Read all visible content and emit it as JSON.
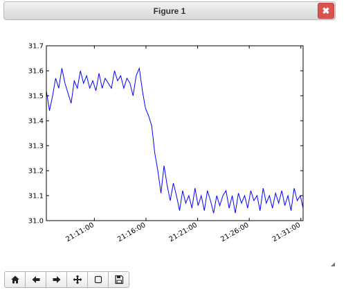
{
  "window": {
    "title": "Figure 1",
    "close_icon": "close-icon"
  },
  "toolbar": {
    "buttons": [
      {
        "name": "home",
        "icon": "home-icon"
      },
      {
        "name": "back",
        "icon": "arrow-left-icon"
      },
      {
        "name": "forward",
        "icon": "arrow-right-icon"
      },
      {
        "name": "pan",
        "icon": "move-icon"
      },
      {
        "name": "zoom",
        "icon": "zoom-rect-icon"
      },
      {
        "name": "save",
        "icon": "save-icon"
      }
    ]
  },
  "chart_data": {
    "type": "line",
    "title": "",
    "xlabel": "",
    "ylabel": "",
    "color": "#0000ff",
    "ylim": [
      31.0,
      31.7
    ],
    "y_ticks": [
      "31.0",
      "31.1",
      "31.2",
      "31.3",
      "31.4",
      "31.5",
      "31.6",
      "31.7"
    ],
    "xlim": [
      "21:06:21",
      "21:31:13"
    ],
    "x_ticks": [
      "21:11:00",
      "21:16:00",
      "21:21:00",
      "21:26:00",
      "21:31:00"
    ],
    "grid": false,
    "series": [
      {
        "x": [
          "21:06:21",
          "21:06:39",
          "21:06:57",
          "21:07:15",
          "21:07:33",
          "21:07:51",
          "21:08:09",
          "21:08:27",
          "21:08:45",
          "21:09:03",
          "21:09:21",
          "21:09:39",
          "21:09:57",
          "21:10:15",
          "21:10:33",
          "21:10:51",
          "21:11:09",
          "21:11:27",
          "21:11:45",
          "21:12:03",
          "21:12:21",
          "21:12:39",
          "21:12:57",
          "21:13:15",
          "21:13:33",
          "21:13:51",
          "21:14:09",
          "21:14:27",
          "21:14:45",
          "21:15:03",
          "21:15:21",
          "21:15:39",
          "21:15:57",
          "21:16:15",
          "21:16:33",
          "21:16:51",
          "21:17:09",
          "21:17:27",
          "21:17:45",
          "21:18:03",
          "21:18:21",
          "21:18:39",
          "21:18:57",
          "21:19:15",
          "21:19:33",
          "21:19:51",
          "21:20:09",
          "21:20:27",
          "21:20:45",
          "21:21:03",
          "21:21:21",
          "21:21:39",
          "21:21:57",
          "21:22:15",
          "21:22:33",
          "21:22:51",
          "21:23:09",
          "21:23:27",
          "21:23:45",
          "21:24:03",
          "21:24:21",
          "21:24:39",
          "21:24:57",
          "21:25:15",
          "21:25:33",
          "21:25:51",
          "21:26:09",
          "21:26:27",
          "21:26:45",
          "21:27:03",
          "21:27:21",
          "21:27:39",
          "21:27:57",
          "21:28:15",
          "21:28:33",
          "21:28:51",
          "21:29:09",
          "21:29:27",
          "21:29:45",
          "21:30:03",
          "21:30:21",
          "21:30:39",
          "21:30:57",
          "21:31:13"
        ],
        "y": [
          31.52,
          31.44,
          31.5,
          31.57,
          31.53,
          31.61,
          31.55,
          31.51,
          31.47,
          31.56,
          31.53,
          31.6,
          31.55,
          31.58,
          31.53,
          31.56,
          31.52,
          31.59,
          31.53,
          31.57,
          31.55,
          31.53,
          31.6,
          31.56,
          31.58,
          31.53,
          31.57,
          31.55,
          31.5,
          31.58,
          31.61,
          31.52,
          31.45,
          31.42,
          31.38,
          31.27,
          31.2,
          31.11,
          31.22,
          31.14,
          31.08,
          31.15,
          31.1,
          31.04,
          31.12,
          31.07,
          31.1,
          31.05,
          31.13,
          31.06,
          31.1,
          31.04,
          31.12,
          31.08,
          31.03,
          31.1,
          31.06,
          31.1,
          31.12,
          31.05,
          31.1,
          31.03,
          31.11,
          31.07,
          31.1,
          31.05,
          31.12,
          31.08,
          31.1,
          31.04,
          31.13,
          31.07,
          31.1,
          31.05,
          31.11,
          31.07,
          31.12,
          31.06,
          31.1,
          31.04,
          31.13,
          31.08,
          31.1,
          31.05
        ]
      }
    ]
  }
}
